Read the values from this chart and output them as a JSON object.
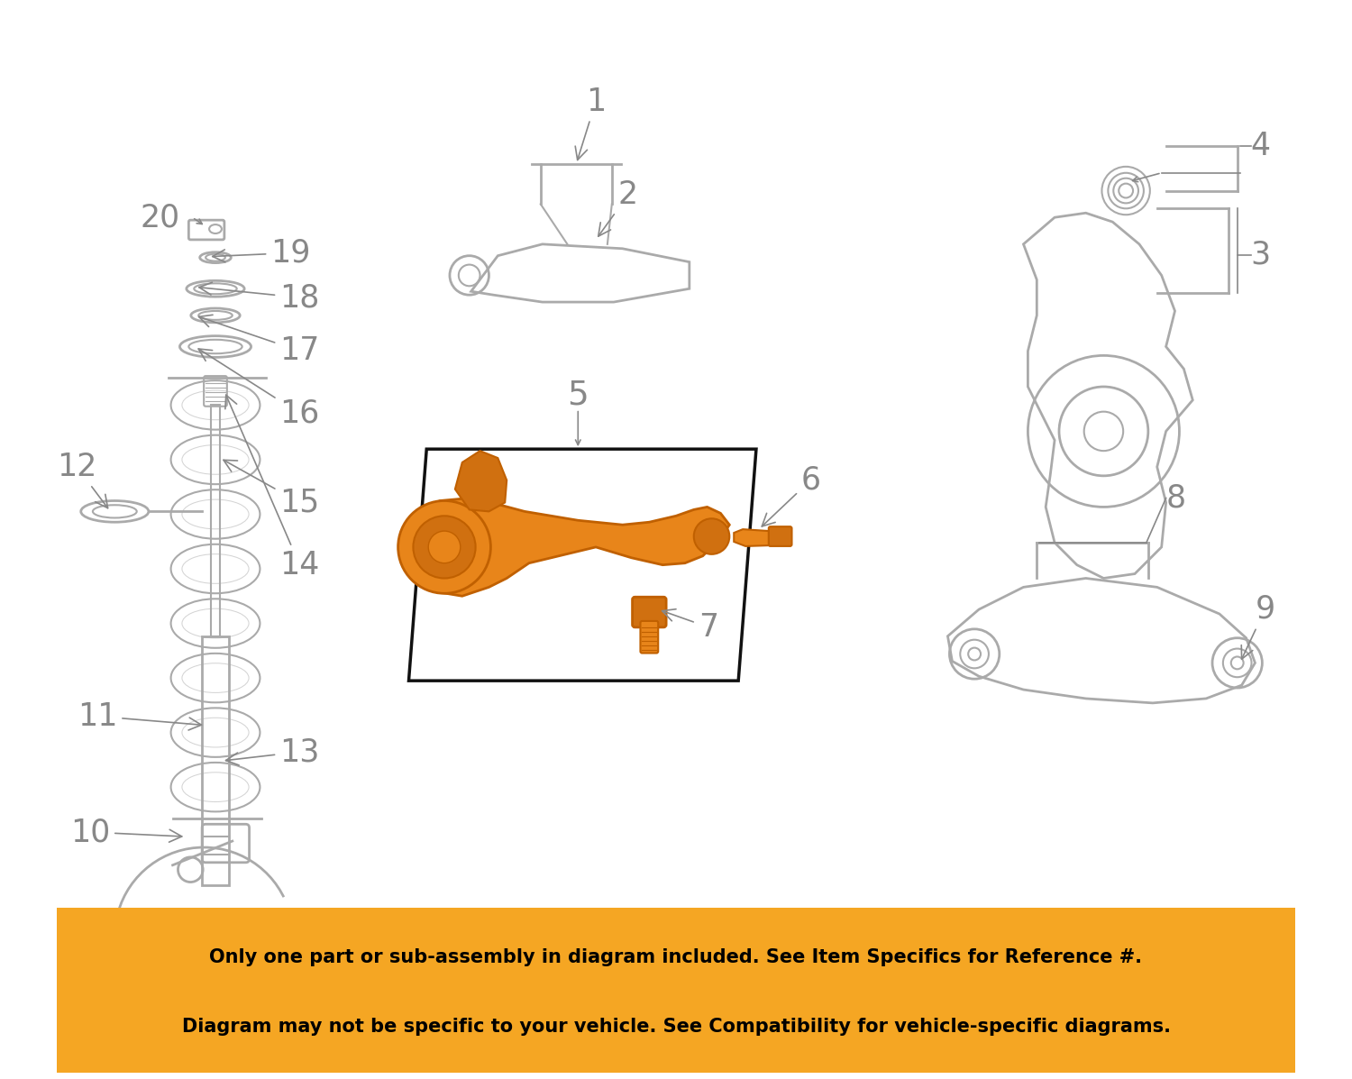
{
  "background_color": "#ffffff",
  "banner_color": "#F5A623",
  "banner_text_color": "#000000",
  "banner_line1": "Only one part or sub-assembly in diagram included. See Item Specifics for Reference #.",
  "banner_line2": "Diagram may not be specific to your vehicle. See Compatibility for vehicle-specific diagrams.",
  "diagram_color": "#aaaaaa",
  "outline_color": "#888888",
  "highlight_color": "#E8851A",
  "highlight_dark": "#c06000",
  "label_color": "#888888",
  "label_fontsize": 22,
  "arrow_color": "#888888"
}
